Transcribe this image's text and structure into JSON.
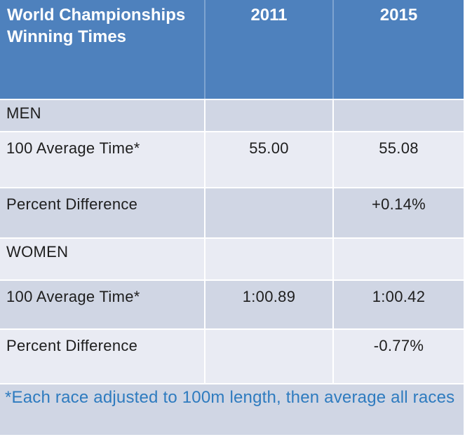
{
  "colors": {
    "header_bg": "#4E81BD",
    "header_text": "#FFFFFF",
    "header_divider": "#7EA4D0",
    "band_dark": "#D0D6E4",
    "band_light": "#E9EBF3",
    "body_text": "#1E1E1E",
    "footnote_text": "#2E7BBF",
    "separator": "#FFFFFF"
  },
  "table": {
    "header": {
      "title": "World Championships Winning Times",
      "col_2011": "2011",
      "col_2015": "2015"
    },
    "rows": [
      {
        "label": "MEN",
        "v2011": "",
        "v2015": ""
      },
      {
        "label": "100 Average Time*",
        "v2011": "55.00",
        "v2015": "55.08"
      },
      {
        "label": "Percent Difference",
        "v2011": "",
        "v2015": "+0.14%"
      },
      {
        "label": "WOMEN",
        "v2011": "",
        "v2015": ""
      },
      {
        "label": "100 Average Time*",
        "v2011": "1:00.89",
        "v2015": "1:00.42"
      },
      {
        "label": "Percent Difference",
        "v2011": "",
        "v2015": "-0.77%"
      }
    ],
    "footnote": "*Each race adjusted to 100m length, then average all races"
  },
  "chart_data": {
    "type": "table",
    "title": "World Championships Winning Times",
    "columns": [
      "",
      "2011",
      "2015"
    ],
    "rows": [
      [
        "MEN",
        "",
        ""
      ],
      [
        "100 Average Time*",
        "55.00",
        "55.08"
      ],
      [
        "Percent Difference",
        "",
        "+0.14%"
      ],
      [
        "WOMEN",
        "",
        ""
      ],
      [
        "100 Average Time*",
        "1:00.89",
        "1:00.42"
      ],
      [
        "Percent Difference",
        "",
        "-0.77%"
      ]
    ],
    "footnote": "*Each race adjusted to 100m length, then average all races"
  }
}
